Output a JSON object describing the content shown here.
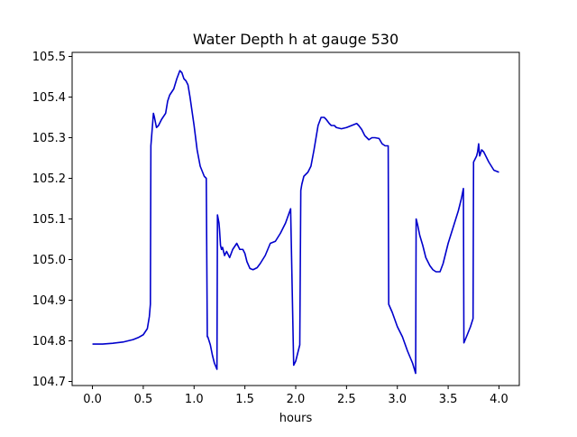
{
  "chart_data": {
    "type": "line",
    "title": "Water Depth h at gauge 530",
    "xlabel": "hours",
    "ylabel": "",
    "xlim": [
      -0.2,
      4.2
    ],
    "ylim": [
      104.69,
      105.51
    ],
    "xticks": [
      0.0,
      0.5,
      1.0,
      1.5,
      2.0,
      2.5,
      3.0,
      3.5,
      4.0
    ],
    "xtick_labels": [
      "0.0",
      "0.5",
      "1.0",
      "1.5",
      "2.0",
      "2.5",
      "3.0",
      "3.5",
      "4.0"
    ],
    "yticks": [
      104.7,
      104.8,
      104.9,
      105.0,
      105.1,
      105.2,
      105.3,
      105.4,
      105.5
    ],
    "ytick_labels": [
      "104.7",
      "104.8",
      "104.9",
      "105.0",
      "105.1",
      "105.2",
      "105.3",
      "105.4",
      "105.5"
    ],
    "grid": false,
    "legend": "none",
    "series": [
      {
        "color": "#0000cc",
        "x": [
          0.0,
          0.1,
          0.2,
          0.3,
          0.4,
          0.45,
          0.5,
          0.54,
          0.56,
          0.57,
          0.575,
          0.6,
          0.61,
          0.63,
          0.65,
          0.68,
          0.72,
          0.74,
          0.76,
          0.8,
          0.83,
          0.86,
          0.88,
          0.9,
          0.92,
          0.94,
          0.96,
          1.0,
          1.03,
          1.06,
          1.1,
          1.12,
          1.13,
          1.135,
          1.16,
          1.18,
          1.2,
          1.225,
          1.23,
          1.245,
          1.25,
          1.26,
          1.27,
          1.28,
          1.3,
          1.32,
          1.35,
          1.38,
          1.42,
          1.45,
          1.48,
          1.5,
          1.52,
          1.55,
          1.58,
          1.62,
          1.65,
          1.7,
          1.75,
          1.8,
          1.85,
          1.9,
          1.95,
          1.98,
          2.0,
          2.01,
          2.02,
          2.04,
          2.05,
          2.06,
          2.08,
          2.1,
          2.12,
          2.15,
          2.18,
          2.22,
          2.25,
          2.28,
          2.3,
          2.33,
          2.35,
          2.38,
          2.4,
          2.45,
          2.5,
          2.55,
          2.6,
          2.62,
          2.65,
          2.68,
          2.72,
          2.75,
          2.78,
          2.82,
          2.85,
          2.88,
          2.91,
          2.915,
          2.95,
          3.0,
          3.05,
          3.1,
          3.15,
          3.18,
          3.185,
          3.2,
          3.22,
          3.25,
          3.28,
          3.32,
          3.35,
          3.38,
          3.42,
          3.45,
          3.5,
          3.55,
          3.6,
          3.63,
          3.65,
          3.655,
          3.68,
          3.72,
          3.745,
          3.75,
          3.78,
          3.79,
          3.8,
          3.81,
          3.83,
          3.85,
          3.87,
          3.9,
          3.95,
          4.0
        ],
        "y": [
          104.792,
          104.792,
          104.794,
          104.797,
          104.803,
          104.808,
          104.815,
          104.83,
          104.86,
          104.89,
          105.28,
          105.36,
          105.35,
          105.325,
          105.33,
          105.345,
          105.36,
          105.39,
          105.405,
          105.42,
          105.445,
          105.465,
          105.46,
          105.445,
          105.44,
          105.43,
          105.4,
          105.33,
          105.27,
          105.23,
          105.205,
          105.2,
          104.81,
          104.81,
          104.79,
          104.765,
          104.745,
          104.73,
          105.11,
          105.09,
          105.075,
          105.035,
          105.025,
          105.03,
          105.01,
          105.02,
          105.005,
          105.025,
          105.04,
          105.025,
          105.025,
          105.015,
          104.995,
          104.978,
          104.975,
          104.98,
          104.99,
          105.01,
          105.04,
          105.045,
          105.065,
          105.09,
          105.125,
          104.74,
          104.75,
          104.76,
          104.77,
          104.79,
          105.17,
          105.185,
          105.205,
          105.21,
          105.215,
          105.23,
          105.27,
          105.33,
          105.35,
          105.35,
          105.345,
          105.335,
          105.33,
          105.33,
          105.325,
          105.322,
          105.325,
          105.33,
          105.335,
          105.33,
          105.32,
          105.305,
          105.295,
          105.3,
          105.3,
          105.298,
          105.285,
          105.28,
          105.28,
          104.89,
          104.87,
          104.835,
          104.81,
          104.775,
          104.745,
          104.72,
          105.1,
          105.085,
          105.06,
          105.035,
          105.005,
          104.985,
          104.975,
          104.97,
          104.97,
          104.99,
          105.04,
          105.08,
          105.12,
          105.15,
          105.175,
          104.795,
          104.81,
          104.835,
          104.855,
          105.24,
          105.255,
          105.265,
          105.285,
          105.255,
          105.27,
          105.265,
          105.255,
          105.24,
          105.22,
          105.215
        ]
      }
    ]
  }
}
